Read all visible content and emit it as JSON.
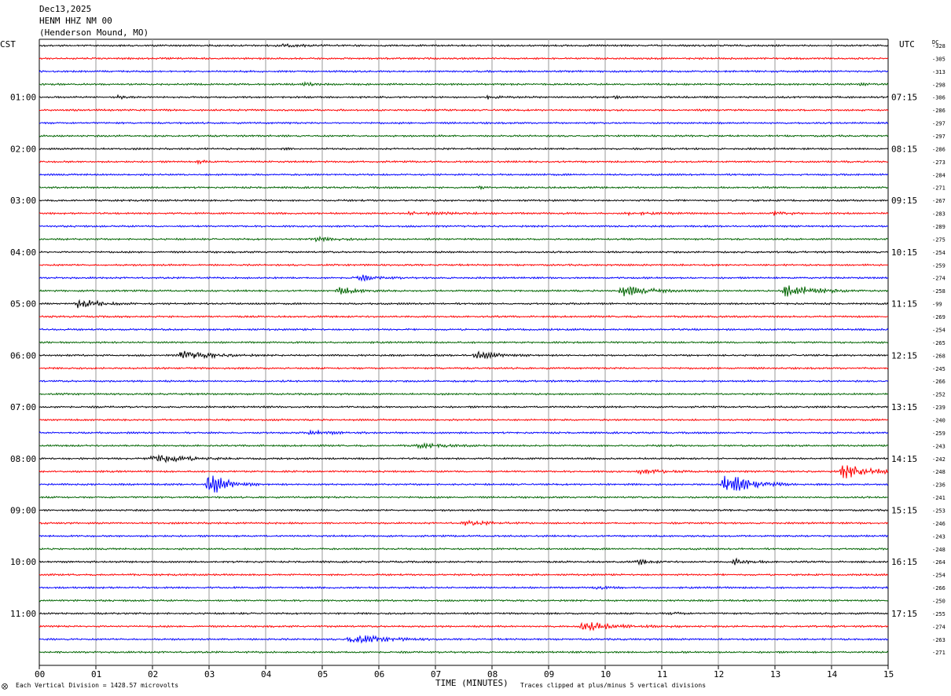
{
  "header": {
    "date": "Dec13,2025",
    "station": "HENM HHZ NM 00",
    "location": "(Henderson Mound, MO)"
  },
  "axes": {
    "left_tz": "CST",
    "right_tz": "UTC",
    "dc_label": "DC",
    "x_title": "TIME (MINUTES)"
  },
  "footer": {
    "scale_note": "Each Vertical Division = 1428.57 microvolts",
    "clip_note": "Traces clipped at plus/minus 5 vertical divisions"
  },
  "colors": {
    "cycle": [
      "#000000",
      "#ff0000",
      "#0000ff",
      "#006400"
    ],
    "grid": "#999999"
  },
  "chart_data": {
    "type": "line",
    "title": "HENM HHZ NM 00",
    "xlabel": "TIME (MINUTES)",
    "ylabel": "",
    "xlim": [
      0,
      15
    ],
    "x_ticks": [
      "00",
      "01",
      "02",
      "03",
      "04",
      "05",
      "06",
      "07",
      "08",
      "09",
      "10",
      "11",
      "12",
      "13",
      "14",
      "15"
    ],
    "trace_count": 48,
    "minutes_per_trace": 15,
    "left_hour_labels": [
      {
        "trace": 4,
        "label": "01:00"
      },
      {
        "trace": 8,
        "label": "02:00"
      },
      {
        "trace": 12,
        "label": "03:00"
      },
      {
        "trace": 16,
        "label": "04:00"
      },
      {
        "trace": 20,
        "label": "05:00"
      },
      {
        "trace": 24,
        "label": "06:00"
      },
      {
        "trace": 28,
        "label": "07:00"
      },
      {
        "trace": 32,
        "label": "08:00"
      },
      {
        "trace": 36,
        "label": "09:00"
      },
      {
        "trace": 40,
        "label": "10:00"
      },
      {
        "trace": 44,
        "label": "11:00"
      }
    ],
    "right_hour_labels": [
      {
        "trace": 4,
        "label": "07:15"
      },
      {
        "trace": 8,
        "label": "08:15"
      },
      {
        "trace": 12,
        "label": "09:15"
      },
      {
        "trace": 16,
        "label": "10:15"
      },
      {
        "trace": 20,
        "label": "11:15"
      },
      {
        "trace": 24,
        "label": "12:15"
      },
      {
        "trace": 28,
        "label": "13:15"
      },
      {
        "trace": 32,
        "label": "14:15"
      },
      {
        "trace": 36,
        "label": "15:15"
      },
      {
        "trace": 40,
        "label": "16:15"
      },
      {
        "trace": 44,
        "label": "17:15"
      }
    ],
    "dc_offsets": [
      "-328",
      "-305",
      "-313",
      "-298",
      "-306",
      "-286",
      "-297",
      "-297",
      "-286",
      "-273",
      "-284",
      "-271",
      "-267",
      "-283",
      "-289",
      "-275",
      "-254",
      "-259",
      "-274",
      "-258",
      "-99",
      "-269",
      "-254",
      "-265",
      "-268",
      "-245",
      "-266",
      "-252",
      "-239",
      "-240",
      "-259",
      "-243",
      "-242",
      "-248",
      "-236",
      "-241",
      "-253",
      "-246",
      "-243",
      "-248",
      "-264",
      "-254",
      "-266",
      "-250",
      "-255",
      "-274",
      "-263",
      "-271"
    ],
    "events": [
      {
        "trace": 0,
        "minute": 4.2,
        "amp": 1.5,
        "dur": 1.4
      },
      {
        "trace": 3,
        "minute": 4.7,
        "amp": 1.6,
        "dur": 0.8
      },
      {
        "trace": 3,
        "minute": 14.5,
        "amp": 1.3,
        "dur": 0.4
      },
      {
        "trace": 4,
        "minute": 1.4,
        "amp": 1.6,
        "dur": 0.4
      },
      {
        "trace": 4,
        "minute": 7.9,
        "amp": 1.8,
        "dur": 0.5
      },
      {
        "trace": 4,
        "minute": 10.2,
        "amp": 1.5,
        "dur": 0.4
      },
      {
        "trace": 8,
        "minute": 4.3,
        "amp": 1.5,
        "dur": 0.3
      },
      {
        "trace": 9,
        "minute": 2.85,
        "amp": 2.6,
        "dur": 0.3
      },
      {
        "trace": 11,
        "minute": 7.8,
        "amp": 1.6,
        "dur": 0.3
      },
      {
        "trace": 13,
        "minute": 6.5,
        "amp": 1.4,
        "dur": 3.0
      },
      {
        "trace": 13,
        "minute": 10.4,
        "amp": 1.6,
        "dur": 1.2
      },
      {
        "trace": 13,
        "minute": 13.0,
        "amp": 3.0,
        "dur": 0.6
      },
      {
        "trace": 15,
        "minute": 4.8,
        "amp": 2.4,
        "dur": 1.2
      },
      {
        "trace": 18,
        "minute": 5.6,
        "amp": 4.0,
        "dur": 0.9
      },
      {
        "trace": 19,
        "minute": 5.3,
        "amp": 4.5,
        "dur": 0.9
      },
      {
        "trace": 19,
        "minute": 10.3,
        "amp": 6.0,
        "dur": 1.4
      },
      {
        "trace": 19,
        "minute": 13.2,
        "amp": 9.0,
        "dur": 1.4
      },
      {
        "trace": 20,
        "minute": 0.7,
        "amp": 6.0,
        "dur": 1.0
      },
      {
        "trace": 24,
        "minute": 2.5,
        "amp": 6.0,
        "dur": 1.4
      },
      {
        "trace": 24,
        "minute": 7.7,
        "amp": 5.0,
        "dur": 1.0
      },
      {
        "trace": 30,
        "minute": 4.8,
        "amp": 2.2,
        "dur": 1.2
      },
      {
        "trace": 31,
        "minute": 6.7,
        "amp": 2.5,
        "dur": 1.2
      },
      {
        "trace": 32,
        "minute": 2.0,
        "amp": 7.0,
        "dur": 1.4
      },
      {
        "trace": 33,
        "minute": 10.6,
        "amp": 2.5,
        "dur": 1.4
      },
      {
        "trace": 33,
        "minute": 14.2,
        "amp": 9.0,
        "dur": 1.4
      },
      {
        "trace": 34,
        "minute": 3.0,
        "amp": 14.0,
        "dur": 0.9
      },
      {
        "trace": 34,
        "minute": 12.1,
        "amp": 14.0,
        "dur": 1.3
      },
      {
        "trace": 37,
        "minute": 7.5,
        "amp": 3.0,
        "dur": 1.2
      },
      {
        "trace": 40,
        "minute": 10.6,
        "amp": 3.0,
        "dur": 0.6
      },
      {
        "trace": 40,
        "minute": 12.3,
        "amp": 3.5,
        "dur": 0.8
      },
      {
        "trace": 42,
        "minute": 9.8,
        "amp": 1.5,
        "dur": 0.8
      },
      {
        "trace": 44,
        "minute": 11.2,
        "amp": 1.5,
        "dur": 0.5
      },
      {
        "trace": 45,
        "minute": 9.6,
        "amp": 5.0,
        "dur": 1.8
      },
      {
        "trace": 46,
        "minute": 5.5,
        "amp": 6.0,
        "dur": 1.6
      }
    ]
  }
}
